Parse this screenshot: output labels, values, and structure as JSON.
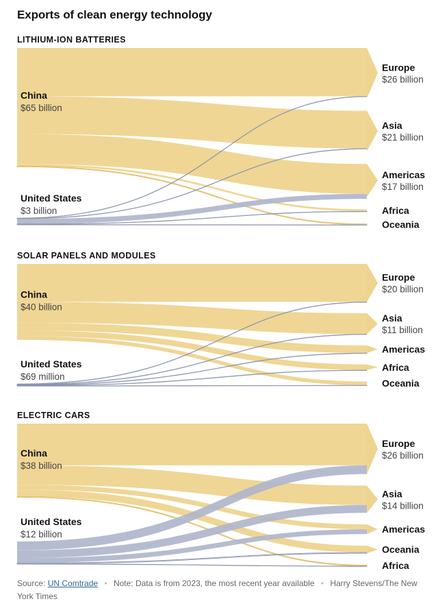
{
  "title": "Exports of clean energy technology",
  "colors": {
    "china": "#eed48f",
    "us": "#aeb5cb",
    "china_line": "#d9b45a",
    "us_line": "#8a93ad"
  },
  "chart_data": [
    {
      "type": "sankey",
      "title": "LITHIUM-ION BATTERIES",
      "sources": [
        {
          "name": "China",
          "value_label": "$65 billion",
          "value": 65
        },
        {
          "name": "United States",
          "value_label": "$3 billion",
          "value": 3
        }
      ],
      "targets": [
        {
          "name": "Europe",
          "value_label": "$26 billion",
          "value": 26
        },
        {
          "name": "Asia",
          "value_label": "$21 billion",
          "value": 21
        },
        {
          "name": "Americas",
          "value_label": "$17 billion",
          "value": 17
        },
        {
          "name": "Africa",
          "value_label": "",
          "value": 1
        },
        {
          "name": "Oceania",
          "value_label": "",
          "value": 0.5
        }
      ],
      "flows": [
        {
          "source": "China",
          "target": "Europe",
          "value": 25
        },
        {
          "source": "China",
          "target": "Asia",
          "value": 19.5
        },
        {
          "source": "China",
          "target": "Americas",
          "value": 15.5
        },
        {
          "source": "China",
          "target": "Africa",
          "value": 1
        },
        {
          "source": "China",
          "target": "Oceania",
          "value": 0.5
        },
        {
          "source": "United States",
          "target": "Europe",
          "value": 0.15
        },
        {
          "source": "United States",
          "target": "Asia",
          "value": 0.1
        },
        {
          "source": "United States",
          "target": "Americas",
          "value": 2.6
        },
        {
          "source": "United States",
          "target": "Africa",
          "value": 0.02
        },
        {
          "source": "United States",
          "target": "Oceania",
          "value": 0.02
        }
      ]
    },
    {
      "type": "sankey",
      "title": "SOLAR PANELS AND MODULES",
      "sources": [
        {
          "name": "China",
          "value_label": "$40 billion",
          "value": 40
        },
        {
          "name": "United States",
          "value_label": "$69 million",
          "value": 0.069
        }
      ],
      "targets": [
        {
          "name": "Europe",
          "value_label": "$20 billion",
          "value": 20
        },
        {
          "name": "Asia",
          "value_label": "$11 billion",
          "value": 11
        },
        {
          "name": "Americas",
          "value_label": "",
          "value": 4
        },
        {
          "name": "Africa",
          "value_label": "",
          "value": 3
        },
        {
          "name": "Oceania",
          "value_label": "",
          "value": 2
        }
      ],
      "flows": [
        {
          "source": "China",
          "target": "Europe",
          "value": 20
        },
        {
          "source": "China",
          "target": "Asia",
          "value": 11
        },
        {
          "source": "China",
          "target": "Americas",
          "value": 4
        },
        {
          "source": "China",
          "target": "Africa",
          "value": 3
        },
        {
          "source": "China",
          "target": "Oceania",
          "value": 2
        },
        {
          "source": "United States",
          "target": "Europe",
          "value": 0.01
        },
        {
          "source": "United States",
          "target": "Asia",
          "value": 0.01
        },
        {
          "source": "United States",
          "target": "Americas",
          "value": 0.04
        },
        {
          "source": "United States",
          "target": "Africa",
          "value": 0.005
        },
        {
          "source": "United States",
          "target": "Oceania",
          "value": 0.004
        }
      ]
    },
    {
      "type": "sankey",
      "title": "ELECTRIC CARS",
      "sources": [
        {
          "name": "China",
          "value_label": "$38 billion",
          "value": 38
        },
        {
          "name": "United States",
          "value_label": "$12 billion",
          "value": 12
        }
      ],
      "targets": [
        {
          "name": "Europe",
          "value_label": "$26 billion",
          "value": 26
        },
        {
          "name": "Asia",
          "value_label": "$14 billion",
          "value": 14
        },
        {
          "name": "Americas",
          "value_label": "",
          "value": 5
        },
        {
          "name": "Oceania",
          "value_label": "",
          "value": 4
        },
        {
          "name": "Africa",
          "value_label": "",
          "value": 0.6
        }
      ],
      "flows": [
        {
          "source": "China",
          "target": "Europe",
          "value": 21.5
        },
        {
          "source": "China",
          "target": "Asia",
          "value": 10
        },
        {
          "source": "China",
          "target": "Americas",
          "value": 2.5
        },
        {
          "source": "China",
          "target": "Oceania",
          "value": 3.5
        },
        {
          "source": "China",
          "target": "Africa",
          "value": 0.5
        },
        {
          "source": "United States",
          "target": "Europe",
          "value": 4.5
        },
        {
          "source": "United States",
          "target": "Asia",
          "value": 4
        },
        {
          "source": "United States",
          "target": "Americas",
          "value": 2.5
        },
        {
          "source": "United States",
          "target": "Oceania",
          "value": 0.5
        },
        {
          "source": "United States",
          "target": "Africa",
          "value": 0.1
        }
      ]
    }
  ],
  "footer": {
    "source_prefix": "Source:",
    "source_link": "UN Comtrade",
    "note": "Note: Data is from 2023, the most recent year available",
    "credit": "Harry Stevens/The New York Times"
  }
}
